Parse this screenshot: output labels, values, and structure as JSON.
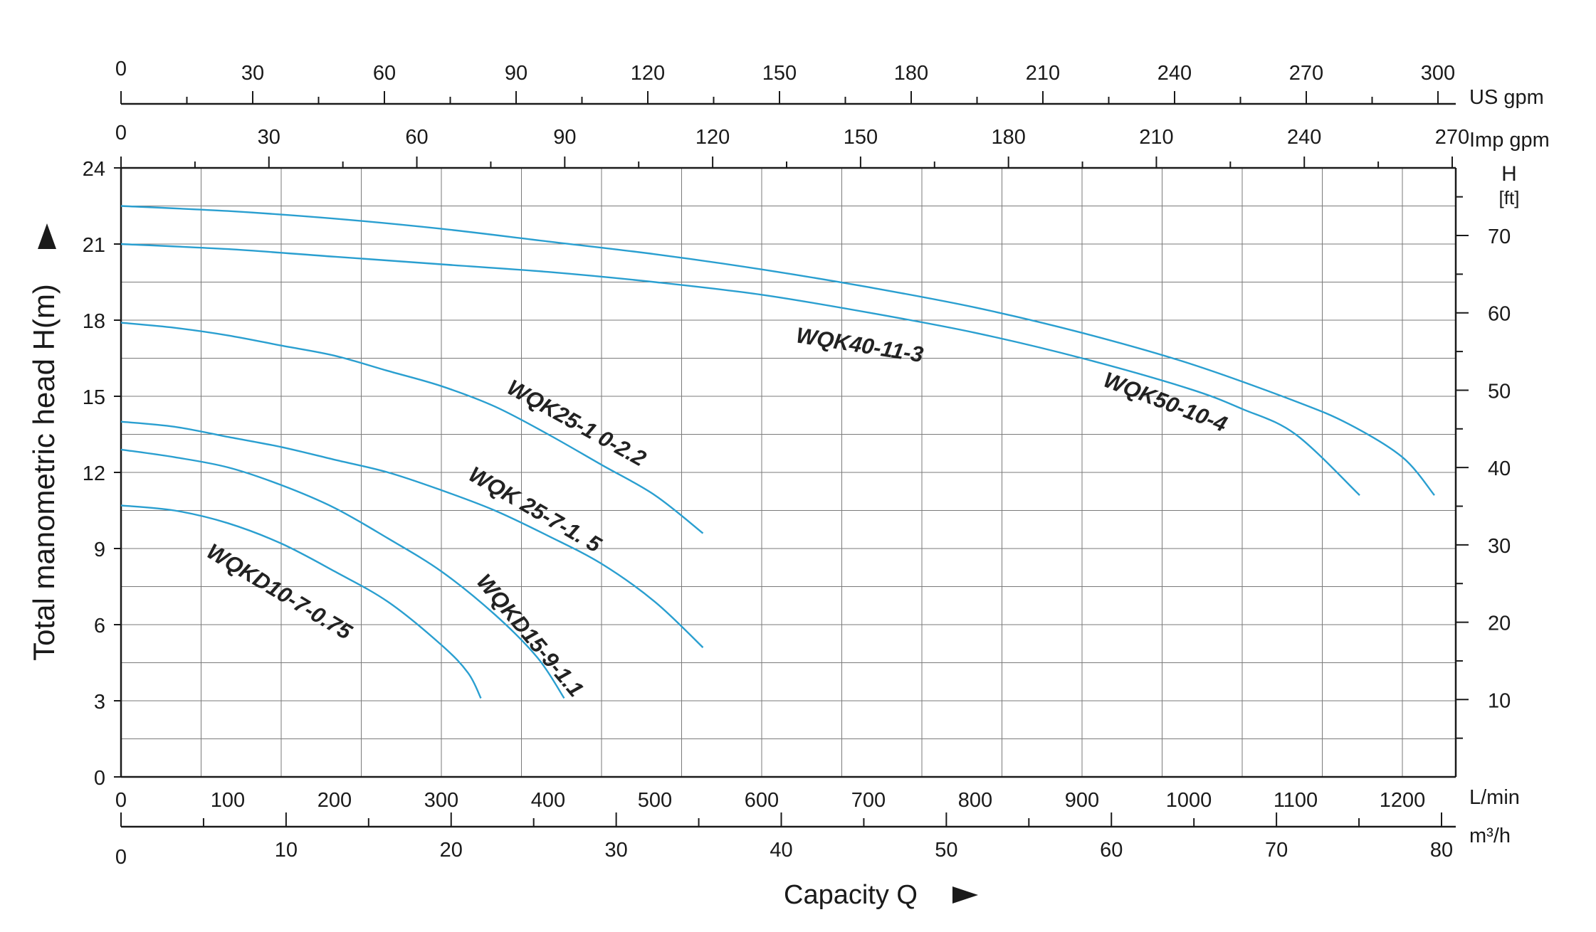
{
  "chart_data": {
    "type": "line",
    "title": "",
    "xlabel": "Capacity Q",
    "ylabel": "Total manometric head H(m)",
    "x_unit": "L/min",
    "y_unit": "m",
    "xlim": [
      0,
      1250
    ],
    "ylim": [
      0,
      24
    ],
    "grid": true,
    "x_ticks": [
      "0",
      "100",
      "200",
      "300",
      "400",
      "500",
      "600",
      "700",
      "800",
      "900",
      "1000",
      "1100",
      "1200"
    ],
    "y_ticks": [
      "0",
      "3",
      "6",
      "9",
      "12",
      "15",
      "18",
      "21",
      "24"
    ],
    "secondary_axes": {
      "us_gpm": {
        "label": "US gpm",
        "ticks": [
          "0",
          "30",
          "60",
          "90",
          "120",
          "150",
          "180",
          "210",
          "240",
          "270",
          "300"
        ]
      },
      "imp_gpm": {
        "label": "Imp gpm",
        "ticks": [
          "0",
          "30",
          "60",
          "90",
          "120",
          "150",
          "180",
          "210",
          "240",
          "270"
        ]
      },
      "m3h": {
        "label": "m³/h",
        "ticks": [
          "0",
          "10",
          "20",
          "30",
          "40",
          "50",
          "60",
          "70",
          "80"
        ]
      },
      "head_ft": {
        "label": "H",
        "unit": "[ft]",
        "ticks": [
          "10",
          "20",
          "30",
          "40",
          "50",
          "60",
          "70"
        ]
      }
    },
    "series_color": "#2a9fd0",
    "series": [
      {
        "name": "WQK50-10-4",
        "x": [
          0,
          100,
          200,
          300,
          400,
          500,
          600,
          700,
          800,
          900,
          1000,
          1100,
          1150,
          1200,
          1230
        ],
        "y": [
          22.5,
          22.3,
          22.0,
          21.6,
          21.1,
          20.6,
          20.0,
          19.3,
          18.5,
          17.5,
          16.3,
          14.8,
          13.9,
          12.6,
          11.1
        ]
      },
      {
        "name": "WQK40-11-3",
        "x": [
          0,
          100,
          200,
          300,
          400,
          500,
          600,
          700,
          800,
          900,
          1000,
          1050,
          1100,
          1160
        ],
        "y": [
          21.0,
          20.8,
          20.5,
          20.2,
          19.9,
          19.5,
          19.0,
          18.3,
          17.5,
          16.5,
          15.3,
          14.5,
          13.5,
          11.1
        ]
      },
      {
        "name": "WQK25-1 0-2.2",
        "x": [
          0,
          50,
          100,
          150,
          200,
          250,
          300,
          350,
          400,
          450,
          500,
          545
        ],
        "y": [
          17.9,
          17.7,
          17.4,
          17.0,
          16.6,
          16.0,
          15.4,
          14.6,
          13.5,
          12.3,
          11.1,
          9.6
        ]
      },
      {
        "name": "WQK 25-7-1. 5",
        "x": [
          0,
          50,
          100,
          150,
          200,
          250,
          300,
          350,
          400,
          450,
          500,
          545
        ],
        "y": [
          14.0,
          13.8,
          13.4,
          13.0,
          12.5,
          12.0,
          11.3,
          10.5,
          9.5,
          8.4,
          6.9,
          5.1
        ]
      },
      {
        "name": "WQKD15-9-1.1",
        "x": [
          0,
          50,
          100,
          150,
          200,
          250,
          300,
          350,
          390,
          415
        ],
        "y": [
          12.9,
          12.6,
          12.2,
          11.5,
          10.6,
          9.4,
          8.1,
          6.4,
          4.7,
          3.1
        ]
      },
      {
        "name": "WQKD10-7-0.75",
        "x": [
          0,
          50,
          100,
          150,
          200,
          250,
          300,
          325,
          337
        ],
        "y": [
          10.7,
          10.5,
          10.0,
          9.2,
          8.1,
          6.9,
          5.2,
          4.1,
          3.1
        ]
      }
    ],
    "curve_labels": [
      "WQK50-10-4",
      "WQK40-11-3",
      "WQK25-1 0-2.2",
      "WQK 25-7-1. 5",
      "WQKD15-9-1.1",
      "WQKD10-7-0.75"
    ]
  }
}
